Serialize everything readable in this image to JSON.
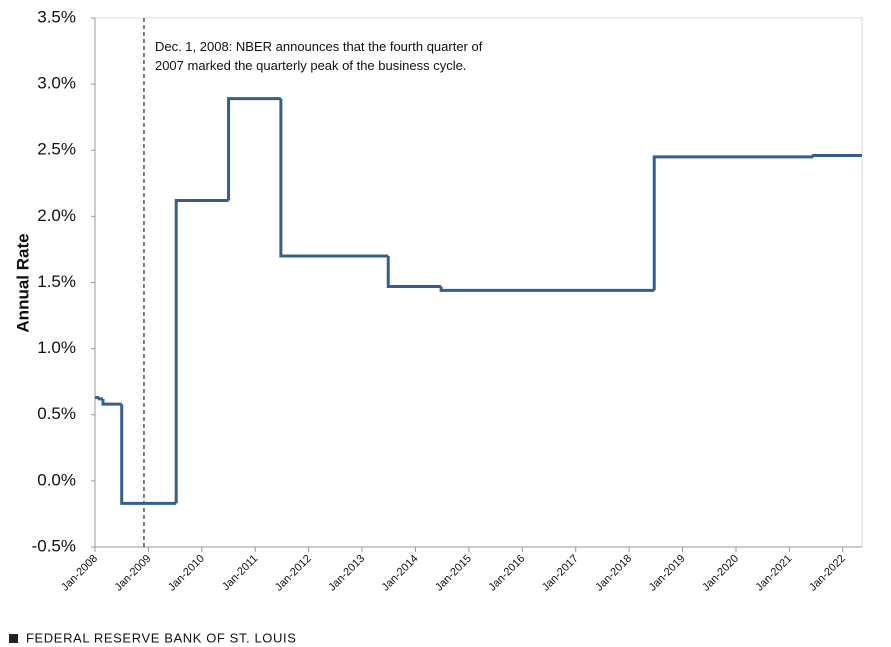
{
  "chart_data": {
    "type": "step",
    "ylabel": "Annual Rate",
    "x": [
      2008.0,
      2008.08,
      2008.15,
      2008.5,
      2009.52,
      2010.5,
      2011.48,
      2013.49,
      2014.48,
      2018.47,
      2021.45,
      2022.36
    ],
    "series": [
      {
        "color": "#365f91",
        "values": [
          0.63,
          0.62,
          0.58,
          -0.17,
          2.12,
          2.89,
          1.7,
          1.47,
          1.44,
          2.45,
          2.46,
          2.46
        ]
      }
    ],
    "xlim": [
      2008,
      2022.36
    ],
    "xticks": [
      {
        "value": 2008,
        "label": "Jan-2008"
      },
      {
        "value": 2009,
        "label": "Jan-2009"
      },
      {
        "value": 2010,
        "label": "Jan-2010"
      },
      {
        "value": 2011,
        "label": "Jan-2011"
      },
      {
        "value": 2012,
        "label": "Jan-2012"
      },
      {
        "value": 2013,
        "label": "Jan-2013"
      },
      {
        "value": 2014,
        "label": "Jan-2014"
      },
      {
        "value": 2015,
        "label": "Jan-2015"
      },
      {
        "value": 2016,
        "label": "Jan-2016"
      },
      {
        "value": 2017,
        "label": "Jan-2017"
      },
      {
        "value": 2018,
        "label": "Jan-2018"
      },
      {
        "value": 2019,
        "label": "Jan-2019"
      },
      {
        "value": 2020,
        "label": "Jan-2020"
      },
      {
        "value": 2021,
        "label": "Jan-2021"
      },
      {
        "value": 2022,
        "label": "Jan-2022"
      }
    ],
    "ylim": [
      -0.5,
      3.5
    ],
    "yticks": [
      {
        "value": -0.5,
        "label": "-0.5%"
      },
      {
        "value": 0,
        "label": "0.0%"
      },
      {
        "value": 0.5,
        "label": "0.5%"
      },
      {
        "value": 1,
        "label": "1.0%"
      },
      {
        "value": 1.5,
        "label": "1.5%"
      },
      {
        "value": 2,
        "label": "2.0%"
      },
      {
        "value": 2.5,
        "label": "2.5%"
      },
      {
        "value": 3,
        "label": "3.0%"
      },
      {
        "value": 3.5,
        "label": "3.5%"
      }
    ],
    "annotation": {
      "x": 2008.917,
      "lines": [
        "Dec. 1, 2008: NBER announces that the fourth quarter of",
        "2007 marked the quarterly peak of the business cycle."
      ]
    },
    "source": "FEDERAL RESERVE BANK OF ST. LOUIS"
  }
}
